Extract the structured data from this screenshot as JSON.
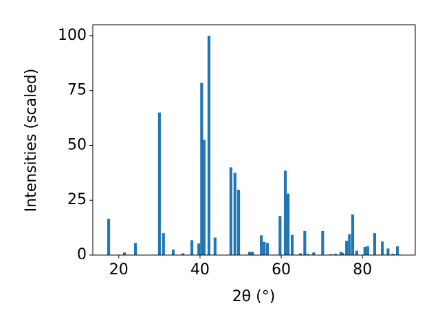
{
  "chart_data": {
    "type": "bar",
    "xlabel": "2θ (°)",
    "ylabel": "Intensities (scaled)",
    "x": [
      17.5,
      21.4,
      24.1,
      30.0,
      31.0,
      33.4,
      35.8,
      38.0,
      39.7,
      40.4,
      41.0,
      42.2,
      43.7,
      47.6,
      48.6,
      49.5,
      52.2,
      52.9,
      55.1,
      55.8,
      56.6,
      59.7,
      61.0,
      61.7,
      62.7,
      64.7,
      65.8,
      66.6,
      68.0,
      70.2,
      72.2,
      73.4,
      74.7,
      75.1,
      76.1,
      76.8,
      77.6,
      78.6,
      80.6,
      81.3,
      83.0,
      84.9,
      86.3,
      87.5,
      88.6
    ],
    "values": [
      16.5,
      1.2,
      5.5,
      65,
      10,
      2.5,
      0.8,
      6.8,
      5.3,
      78.5,
      52.5,
      100,
      8,
      40,
      37.5,
      29.8,
      1.5,
      1.5,
      9,
      6,
      5.5,
      17.8,
      38.5,
      28,
      9.2,
      0.8,
      11,
      0.5,
      1.2,
      11,
      0.4,
      0.6,
      1.5,
      1.0,
      6.5,
      9.5,
      18.5,
      2,
      3.8,
      4.0,
      10,
      6.2,
      3,
      0.6,
      4
    ],
    "color": "#1f77b4",
    "xlim": [
      13.6,
      93.0
    ],
    "xticks": [
      20,
      40,
      60,
      80
    ],
    "ylim": [
      0,
      105
    ],
    "yticks": [
      0,
      25,
      50,
      75,
      100
    ],
    "grid": false
  }
}
